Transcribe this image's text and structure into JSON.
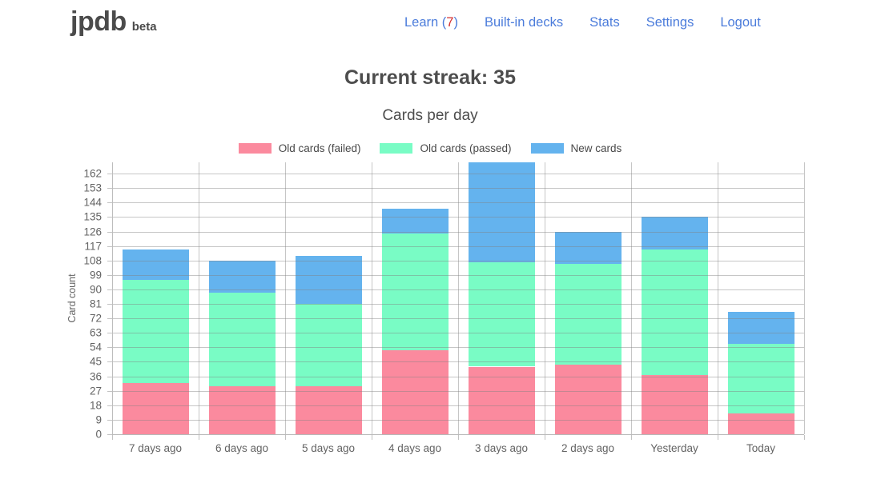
{
  "header": {
    "logo": "jpdb",
    "logo_badge": "beta",
    "nav": {
      "learn_prefix": "Learn (",
      "learn_count": "7",
      "learn_suffix": ")",
      "builtin_decks": "Built-in decks",
      "stats": "Stats",
      "settings": "Settings",
      "logout": "Logout"
    }
  },
  "main": {
    "streak_title": "Current streak: 35"
  },
  "colors": {
    "nav_link_blue": "#4b7cdb",
    "learn_count_red": "#d32f2f",
    "heading_text": "#4d4d4d",
    "axis_text": "#636363",
    "gridline": "#c6c6c6",
    "failed_pink": "#fb8a9e",
    "passed_green": "#79fcc5",
    "new_blue": "#64b3ee"
  },
  "chart_data": {
    "type": "bar",
    "stacked": true,
    "title": "Cards per day",
    "ylabel": "Card count",
    "xlabel": "",
    "legend_position": "top",
    "grid": true,
    "categories": [
      "7 days ago",
      "6 days ago",
      "5 days ago",
      "4 days ago",
      "3 days ago",
      "2 days ago",
      "Yesterday",
      "Today"
    ],
    "series": [
      {
        "name": "Old cards (failed)",
        "color": "#fb8a9e",
        "values": [
          32,
          30,
          30,
          52,
          42,
          43,
          37,
          13
        ]
      },
      {
        "name": "Old cards (passed)",
        "color": "#79fcc5",
        "values": [
          64,
          58,
          51,
          73,
          65,
          63,
          78,
          43
        ]
      },
      {
        "name": "New cards",
        "color": "#64b3ee",
        "values": [
          19,
          20,
          30,
          15,
          62,
          20,
          20,
          20
        ]
      }
    ],
    "stack_totals": [
      115,
      108,
      111,
      140,
      169,
      126,
      135,
      76
    ],
    "ylim": [
      0,
      169
    ],
    "ytick_step": 9,
    "ytick_max": 162
  }
}
